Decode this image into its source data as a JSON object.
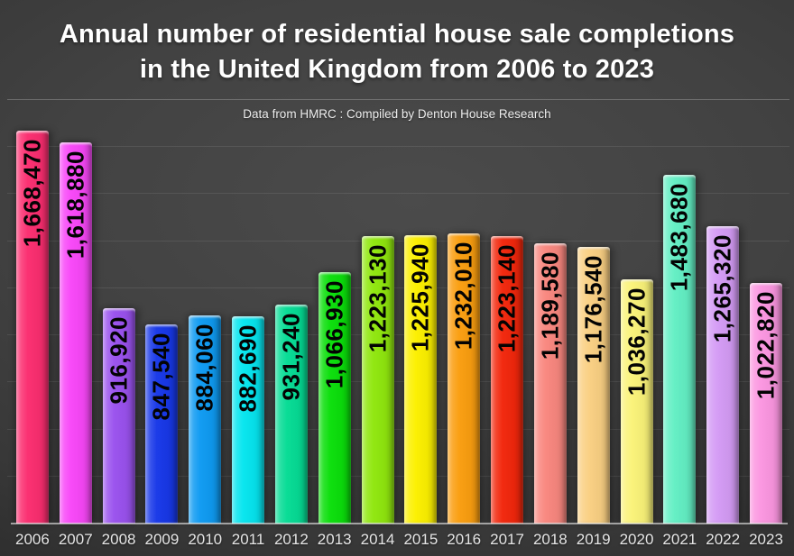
{
  "slide_title": {
    "line1": "Annual number of residential house sale completions",
    "line2": "in the United Kingdom from 2006 to 2023"
  },
  "subtitle": "Data from HMRC : Compiled by Denton House Research",
  "colors": {
    "background_center": "#4b4b4b",
    "background_edge": "#262626",
    "title_text": "#ffffff",
    "subtitle_text": "#ededed",
    "value_label_text": "#000000",
    "axis_label_text": "#e6e6e6",
    "gridline": "rgba(255,255,255,0.09)",
    "axis_line": "rgba(255,255,255,0.55)"
  },
  "chart_data": {
    "type": "bar",
    "title": "Annual number of residential house sale completions in the United Kingdom from 2006 to 2023",
    "subtitle": "Data from HMRC : Compiled by Denton House Research",
    "xlabel": "",
    "ylabel": "",
    "ylim": [
      0,
      1800000
    ],
    "gridline_step": 200000,
    "grid": "horizontal, faint, no y-axis tick labels",
    "legend_position": "none",
    "value_label_style": "black bold, rotated 90deg counterclockwise, inside bar near top",
    "categories": [
      "2006",
      "2007",
      "2008",
      "2009",
      "2010",
      "2011",
      "2012",
      "2013",
      "2014",
      "2015",
      "2016",
      "2017",
      "2018",
      "2019",
      "2020",
      "2021",
      "2022",
      "2023"
    ],
    "values": [
      1668470,
      1618880,
      916920,
      847540,
      884060,
      882690,
      931240,
      1066930,
      1223130,
      1225940,
      1232010,
      1223140,
      1189580,
      1176540,
      1036270,
      1483680,
      1265320,
      1022820
    ],
    "value_labels": [
      "1,668,470",
      "1,618,880",
      "916,920",
      "847,540",
      "884,060",
      "882,690",
      "931,240",
      "1,066,930",
      "1,223,130",
      "1,225,940",
      "1,232,010",
      "1,223,140",
      "1,189,580",
      "1,176,540",
      "1,036,270",
      "1,483,680",
      "1,265,320",
      "1,022,820"
    ],
    "bar_colors": [
      "#FB2E70",
      "#F847F8",
      "#9A52EE",
      "#1838E8",
      "#0F9BF2",
      "#06E5EF",
      "#06DC95",
      "#0BDF0B",
      "#90E70E",
      "#FCF000",
      "#FA9E10",
      "#F2270C",
      "#F9877F",
      "#FAD083",
      "#FAF379",
      "#63EFC4",
      "#D49BF5",
      "#FB96E0"
    ]
  }
}
